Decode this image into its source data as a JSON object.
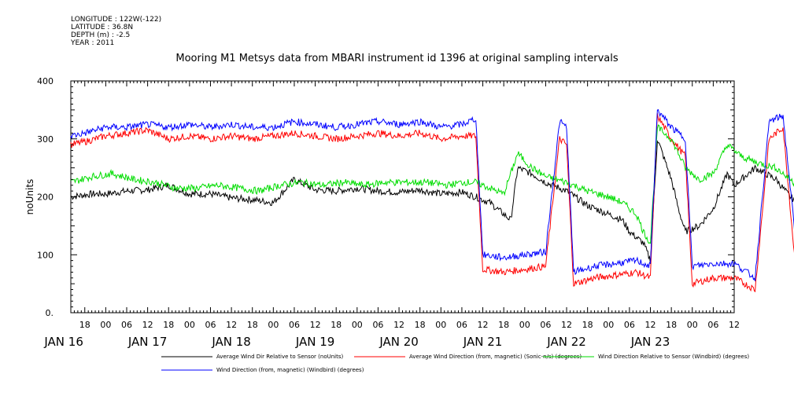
{
  "header": {
    "meta": [
      "LONGITUDE : 122W(-122)",
      "LATITUDE : 36.8N",
      "DEPTH (m) : -2.5",
      "YEAR : 2011"
    ],
    "title": "Mooring M1 Metsys data from MBARI instrument id 1396 at original sampling intervals"
  },
  "chart_data": {
    "type": "line",
    "title": "Mooring M1 Metsys data from MBARI instrument id 1396 at original sampling intervals",
    "ylabel": "noUnits",
    "xlabel": "",
    "ylim": [
      0,
      400
    ],
    "xlim_hours": [
      14,
      204
    ],
    "y_ticks": [
      0,
      100,
      200,
      300,
      400
    ],
    "y_tick_labels": [
      "0.",
      "100",
      "200",
      "300",
      "400"
    ],
    "x_hour_labels": [
      "18",
      "00",
      "06",
      "12",
      "18",
      "00",
      "06",
      "12",
      "18",
      "00",
      "06",
      "12",
      "18",
      "00",
      "06",
      "12",
      "18",
      "00",
      "06",
      "12",
      "18",
      "00",
      "06",
      "12",
      "18",
      "00",
      "06",
      "12",
      "18",
      "00",
      "06",
      "12"
    ],
    "x_day_labels": [
      "JAN 16",
      "JAN 17",
      "JAN 18",
      "JAN 19",
      "JAN 20",
      "JAN 21",
      "JAN 22",
      "JAN 23"
    ],
    "series": [
      {
        "name": "Average Wind Dir Relative to Sensor (noUnits)",
        "color": "#000000",
        "points": [
          [
            14,
            200
          ],
          [
            20,
            205
          ],
          [
            24,
            205
          ],
          [
            30,
            210
          ],
          [
            36,
            212
          ],
          [
            42,
            220
          ],
          [
            48,
            205
          ],
          [
            54,
            205
          ],
          [
            60,
            198
          ],
          [
            66,
            195
          ],
          [
            72,
            190
          ],
          [
            78,
            230
          ],
          [
            84,
            212
          ],
          [
            90,
            210
          ],
          [
            96,
            215
          ],
          [
            102,
            210
          ],
          [
            108,
            208
          ],
          [
            114,
            212
          ],
          [
            120,
            205
          ],
          [
            126,
            208
          ],
          [
            130,
            200
          ],
          [
            134,
            190
          ],
          [
            138,
            170
          ],
          [
            140,
            160
          ],
          [
            142,
            250
          ],
          [
            146,
            240
          ],
          [
            150,
            225
          ],
          [
            156,
            210
          ],
          [
            162,
            185
          ],
          [
            168,
            170
          ],
          [
            172,
            160
          ],
          [
            174,
            140
          ],
          [
            178,
            120
          ],
          [
            180,
            90
          ],
          [
            182,
            300
          ],
          [
            186,
            230
          ],
          [
            188,
            180
          ],
          [
            190,
            140
          ],
          [
            194,
            150
          ],
          [
            198,
            180
          ],
          [
            202,
            240
          ],
          [
            204,
            220
          ],
          [
            210,
            250
          ],
          [
            216,
            230
          ],
          [
            220,
            200
          ],
          [
            224,
            185
          ],
          [
            226,
            190
          ]
        ]
      },
      {
        "name": "Average Wind Direction (from, magnetic) (Sonic-n/s) (degrees)",
        "color": "#ff0000",
        "points": [
          [
            14,
            290
          ],
          [
            18,
            295
          ],
          [
            24,
            305
          ],
          [
            30,
            310
          ],
          [
            36,
            315
          ],
          [
            42,
            300
          ],
          [
            48,
            305
          ],
          [
            54,
            300
          ],
          [
            60,
            305
          ],
          [
            66,
            300
          ],
          [
            72,
            305
          ],
          [
            78,
            310
          ],
          [
            84,
            305
          ],
          [
            90,
            300
          ],
          [
            96,
            305
          ],
          [
            102,
            310
          ],
          [
            108,
            305
          ],
          [
            114,
            310
          ],
          [
            120,
            300
          ],
          [
            126,
            305
          ],
          [
            130,
            305
          ],
          [
            132,
            75
          ],
          [
            138,
            70
          ],
          [
            144,
            75
          ],
          [
            150,
            80
          ],
          [
            154,
            300
          ],
          [
            156,
            290
          ],
          [
            158,
            50
          ],
          [
            164,
            60
          ],
          [
            170,
            65
          ],
          [
            176,
            70
          ],
          [
            180,
            60
          ],
          [
            182,
            340
          ],
          [
            186,
            300
          ],
          [
            190,
            270
          ],
          [
            192,
            50
          ],
          [
            198,
            60
          ],
          [
            204,
            60
          ],
          [
            210,
            40
          ],
          [
            214,
            300
          ],
          [
            218,
            320
          ],
          [
            222,
            50
          ],
          [
            226,
            80
          ]
        ]
      },
      {
        "name": "Wind Direction Relative to Sensor (Windbird) (degrees)",
        "color": "#00dd00",
        "points": [
          [
            14,
            225
          ],
          [
            20,
            235
          ],
          [
            26,
            240
          ],
          [
            32,
            230
          ],
          [
            38,
            225
          ],
          [
            44,
            215
          ],
          [
            50,
            215
          ],
          [
            56,
            220
          ],
          [
            62,
            215
          ],
          [
            68,
            210
          ],
          [
            74,
            220
          ],
          [
            80,
            225
          ],
          [
            86,
            220
          ],
          [
            92,
            225
          ],
          [
            98,
            220
          ],
          [
            104,
            225
          ],
          [
            110,
            225
          ],
          [
            116,
            225
          ],
          [
            122,
            220
          ],
          [
            126,
            225
          ],
          [
            130,
            225
          ],
          [
            134,
            215
          ],
          [
            138,
            205
          ],
          [
            142,
            275
          ],
          [
            146,
            250
          ],
          [
            150,
            235
          ],
          [
            156,
            225
          ],
          [
            162,
            210
          ],
          [
            168,
            200
          ],
          [
            172,
            190
          ],
          [
            176,
            170
          ],
          [
            178,
            140
          ],
          [
            180,
            120
          ],
          [
            182,
            320
          ],
          [
            186,
            300
          ],
          [
            190,
            250
          ],
          [
            194,
            230
          ],
          [
            198,
            240
          ],
          [
            202,
            290
          ],
          [
            206,
            270
          ],
          [
            210,
            260
          ],
          [
            216,
            250
          ],
          [
            220,
            230
          ],
          [
            224,
            210
          ],
          [
            226,
            215
          ]
        ]
      },
      {
        "name": "Wind Direction (from, magnetic) (Windbird) (degrees)",
        "color": "#0000ff",
        "points": [
          [
            14,
            305
          ],
          [
            18,
            310
          ],
          [
            24,
            320
          ],
          [
            30,
            320
          ],
          [
            36,
            325
          ],
          [
            42,
            320
          ],
          [
            48,
            325
          ],
          [
            54,
            320
          ],
          [
            60,
            325
          ],
          [
            66,
            320
          ],
          [
            72,
            320
          ],
          [
            78,
            330
          ],
          [
            84,
            325
          ],
          [
            90,
            320
          ],
          [
            96,
            325
          ],
          [
            102,
            330
          ],
          [
            108,
            325
          ],
          [
            114,
            330
          ],
          [
            120,
            320
          ],
          [
            126,
            325
          ],
          [
            130,
            335
          ],
          [
            132,
            100
          ],
          [
            138,
            95
          ],
          [
            144,
            100
          ],
          [
            150,
            105
          ],
          [
            154,
            330
          ],
          [
            156,
            320
          ],
          [
            158,
            70
          ],
          [
            164,
            80
          ],
          [
            170,
            85
          ],
          [
            176,
            90
          ],
          [
            180,
            80
          ],
          [
            182,
            350
          ],
          [
            186,
            320
          ],
          [
            190,
            300
          ],
          [
            192,
            80
          ],
          [
            198,
            85
          ],
          [
            204,
            85
          ],
          [
            210,
            60
          ],
          [
            214,
            330
          ],
          [
            218,
            340
          ],
          [
            222,
            100
          ],
          [
            226,
            105
          ]
        ]
      }
    ],
    "legend_position": "bottom"
  }
}
